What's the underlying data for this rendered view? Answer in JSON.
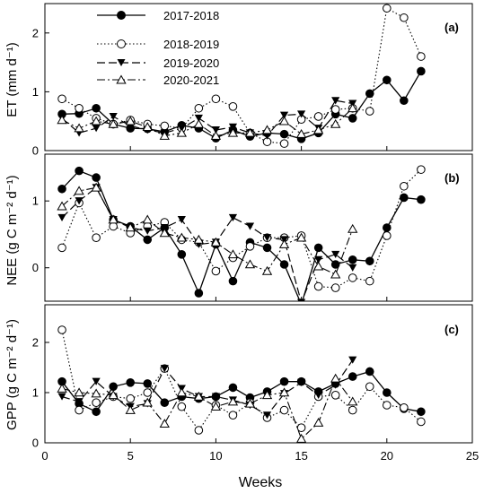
{
  "chart_data": [
    {
      "type": "line",
      "panel_label": "(a)",
      "ylabel": "ET (mm d⁻¹)",
      "ylim": [
        0,
        2.5
      ],
      "yticks": [
        0,
        1,
        2
      ],
      "xlim": [
        0,
        25
      ],
      "xticks": [
        0,
        5,
        10,
        15,
        20,
        25
      ],
      "legend_position": "top-left",
      "series": [
        {
          "name": "2017-2018",
          "x": [
            1,
            2,
            3,
            4,
            5,
            6,
            7,
            8,
            9,
            10,
            11,
            12,
            13,
            14,
            15,
            16,
            17,
            18,
            19,
            20,
            21,
            22
          ],
          "values": [
            0.62,
            0.63,
            0.72,
            0.45,
            0.38,
            0.37,
            0.32,
            0.43,
            0.38,
            0.21,
            0.35,
            0.24,
            0.3,
            0.28,
            0.2,
            0.3,
            0.62,
            0.55,
            0.97,
            1.2,
            0.85,
            1.35
          ]
        },
        {
          "name": "2018-2019",
          "x": [
            1,
            2,
            3,
            4,
            5,
            6,
            7,
            8,
            9,
            10,
            11,
            12,
            13,
            14,
            15,
            16,
            17,
            18,
            19,
            20,
            21,
            22
          ],
          "values": [
            0.88,
            0.72,
            0.55,
            0.45,
            0.52,
            0.45,
            0.42,
            0.38,
            0.72,
            0.88,
            0.75,
            0.3,
            0.15,
            0.12,
            0.53,
            0.58,
            0.7,
            0.72,
            0.67,
            2.42,
            2.26,
            1.6
          ]
        },
        {
          "name": "2019-2020",
          "x": [
            1,
            2,
            3,
            4,
            5,
            6,
            7,
            8,
            9,
            10,
            11,
            12,
            13,
            14,
            15,
            16,
            17,
            18
          ],
          "values": [
            0.55,
            0.3,
            0.38,
            0.58,
            0.42,
            0.35,
            0.3,
            0.38,
            0.55,
            0.35,
            0.4,
            0.3,
            0.25,
            0.6,
            0.62,
            0.38,
            0.85,
            0.8
          ]
        },
        {
          "name": "2020-2021",
          "x": [
            1,
            2,
            3,
            4,
            5,
            6,
            7,
            8,
            9,
            10,
            11,
            12,
            13,
            14,
            15,
            16,
            17,
            18
          ],
          "values": [
            0.52,
            0.38,
            0.5,
            0.45,
            0.5,
            0.4,
            0.25,
            0.3,
            0.45,
            0.25,
            0.3,
            0.3,
            0.35,
            0.5,
            0.28,
            0.35,
            0.45,
            0.72
          ]
        }
      ]
    },
    {
      "type": "line",
      "panel_label": "(b)",
      "ylabel": "NEE (g C m⁻² d⁻¹)",
      "ylim": [
        -0.5,
        1.7
      ],
      "yticks": [
        0,
        1
      ],
      "xlim": [
        0,
        25
      ],
      "xticks": [
        0,
        5,
        10,
        15,
        20,
        25
      ],
      "series": [
        {
          "name": "2017-2018",
          "x": [
            1,
            2,
            3,
            4,
            5,
            6,
            7,
            8,
            9,
            10,
            11,
            12,
            13,
            14,
            15,
            16,
            17,
            18,
            19,
            20,
            21,
            22
          ],
          "values": [
            1.18,
            1.45,
            1.35,
            0.72,
            0.62,
            0.42,
            0.6,
            0.2,
            -0.38,
            0.35,
            -0.2,
            0.38,
            0.3,
            0.05,
            -0.55,
            0.3,
            0.05,
            0.12,
            0.1,
            0.6,
            1.05,
            1.02
          ]
        },
        {
          "name": "2018-2019",
          "x": [
            1,
            2,
            3,
            4,
            5,
            6,
            7,
            8,
            9,
            10,
            11,
            12,
            13,
            14,
            15,
            16,
            17,
            18,
            19,
            20,
            21,
            22
          ],
          "values": [
            0.3,
            0.97,
            0.45,
            0.62,
            0.52,
            0.62,
            0.68,
            0.42,
            0.38,
            -0.05,
            0.15,
            0.32,
            0.45,
            0.45,
            0.48,
            -0.28,
            -0.3,
            -0.15,
            -0.2,
            0.48,
            1.22,
            1.47
          ]
        },
        {
          "name": "2019-2020",
          "x": [
            1,
            2,
            3,
            4,
            5,
            6,
            7,
            8,
            9,
            10,
            11,
            12,
            13,
            14,
            15,
            16,
            17,
            18
          ],
          "values": [
            0.75,
            1.0,
            1.2,
            0.72,
            0.6,
            0.55,
            0.6,
            0.72,
            0.35,
            0.38,
            0.75,
            0.62,
            0.45,
            0.42,
            -0.52,
            0.12,
            0.2,
            0.0
          ]
        },
        {
          "name": "2020-2021",
          "x": [
            1,
            2,
            3,
            4,
            5,
            6,
            7,
            8,
            9,
            10,
            11,
            12,
            13,
            14,
            15,
            16,
            17,
            18
          ],
          "values": [
            0.92,
            1.15,
            1.2,
            0.72,
            0.6,
            0.72,
            0.52,
            0.45,
            0.42,
            0.38,
            0.2,
            0.05,
            -0.05,
            0.35,
            0.45,
            0.02,
            -0.1,
            0.58
          ]
        }
      ]
    },
    {
      "type": "line",
      "panel_label": "(c)",
      "ylabel": "GPP (g C m⁻² d⁻¹)",
      "ylim": [
        0,
        2.75
      ],
      "yticks": [
        0,
        1,
        2
      ],
      "xlim": [
        0,
        25
      ],
      "xticks": [
        0,
        5,
        10,
        15,
        20,
        25
      ],
      "xlabel": "Weeks",
      "series": [
        {
          "name": "2017-2018",
          "x": [
            1,
            2,
            3,
            4,
            5,
            6,
            7,
            8,
            9,
            10,
            11,
            12,
            13,
            14,
            15,
            16,
            17,
            18,
            19,
            20,
            21,
            22
          ],
          "values": [
            1.22,
            0.78,
            0.62,
            1.12,
            1.2,
            1.18,
            0.8,
            0.92,
            0.88,
            0.92,
            1.1,
            0.9,
            1.02,
            1.22,
            1.22,
            1.02,
            1.18,
            1.32,
            1.42,
            1.0,
            0.68,
            0.62
          ]
        },
        {
          "name": "2018-2019",
          "x": [
            1,
            2,
            3,
            4,
            5,
            6,
            7,
            8,
            9,
            10,
            11,
            12,
            13,
            14,
            15,
            16,
            17,
            18,
            19,
            20,
            21,
            22
          ],
          "values": [
            2.25,
            0.65,
            0.8,
            0.92,
            0.88,
            1.0,
            1.48,
            0.72,
            0.25,
            0.75,
            0.55,
            0.8,
            0.5,
            0.65,
            0.3,
            0.92,
            0.95,
            0.65,
            1.12,
            0.75,
            0.7,
            0.42
          ]
        },
        {
          "name": "2019-2020",
          "x": [
            1,
            2,
            3,
            4,
            5,
            6,
            7,
            8,
            9,
            10,
            11,
            12,
            13,
            14,
            15,
            16,
            17,
            18
          ],
          "values": [
            0.92,
            0.82,
            1.22,
            0.92,
            0.72,
            0.78,
            1.48,
            1.08,
            0.92,
            0.92,
            0.85,
            0.75,
            0.55,
            0.98,
            1.2,
            0.95,
            1.15,
            1.65
          ]
        },
        {
          "name": "2020-2021",
          "x": [
            1,
            2,
            3,
            4,
            5,
            6,
            7,
            8,
            9,
            10,
            11,
            12,
            13,
            14,
            15,
            16,
            17,
            18
          ],
          "values": [
            1.08,
            1.0,
            0.98,
            0.95,
            0.65,
            0.8,
            0.38,
            1.0,
            0.92,
            0.72,
            0.82,
            0.78,
            0.95,
            1.0,
            0.08,
            0.4,
            1.28,
            0.82
          ]
        }
      ]
    }
  ]
}
